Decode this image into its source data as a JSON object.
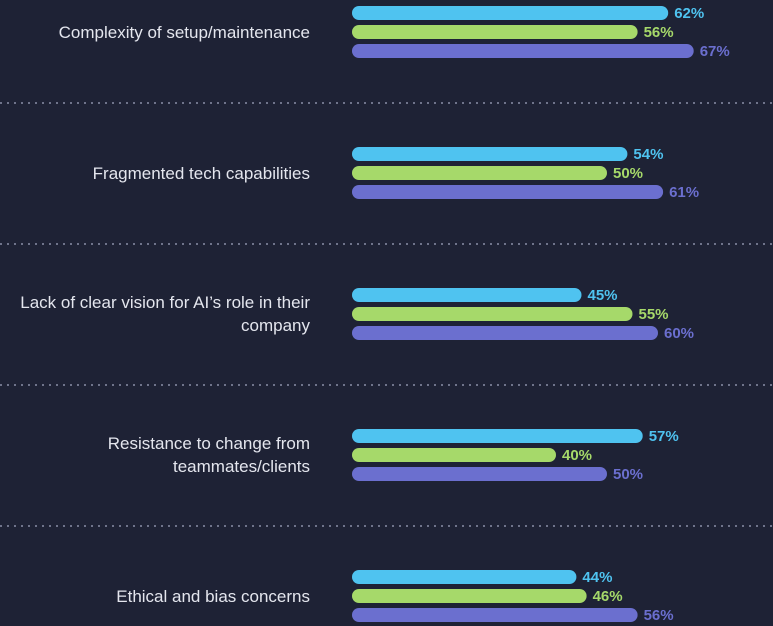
{
  "chart_data": {
    "type": "bar",
    "orientation": "horizontal",
    "categories": [
      "Complexity of setup/maintenance",
      "Fragmented tech capabilities",
      "Lack of clear vision for AI’s role in their company",
      "Resistance to change from teammates/clients",
      "Ethical and bias concerns"
    ],
    "series": [
      {
        "color": "#4fc3f0",
        "values": [
          62,
          54,
          45,
          57,
          44
        ],
        "value_labels": [
          "62%",
          "54%",
          "45%",
          "57%",
          "44%"
        ]
      },
      {
        "color": "#a6d96a",
        "values": [
          56,
          50,
          55,
          40,
          46
        ],
        "value_labels": [
          "56%",
          "50%",
          "55%",
          "40%",
          "46%"
        ]
      },
      {
        "color": "#6b6fcf",
        "values": [
          67,
          61,
          60,
          50,
          56
        ],
        "value_labels": [
          "67%",
          "61%",
          "60%",
          "50%",
          "56%"
        ]
      }
    ]
  }
}
